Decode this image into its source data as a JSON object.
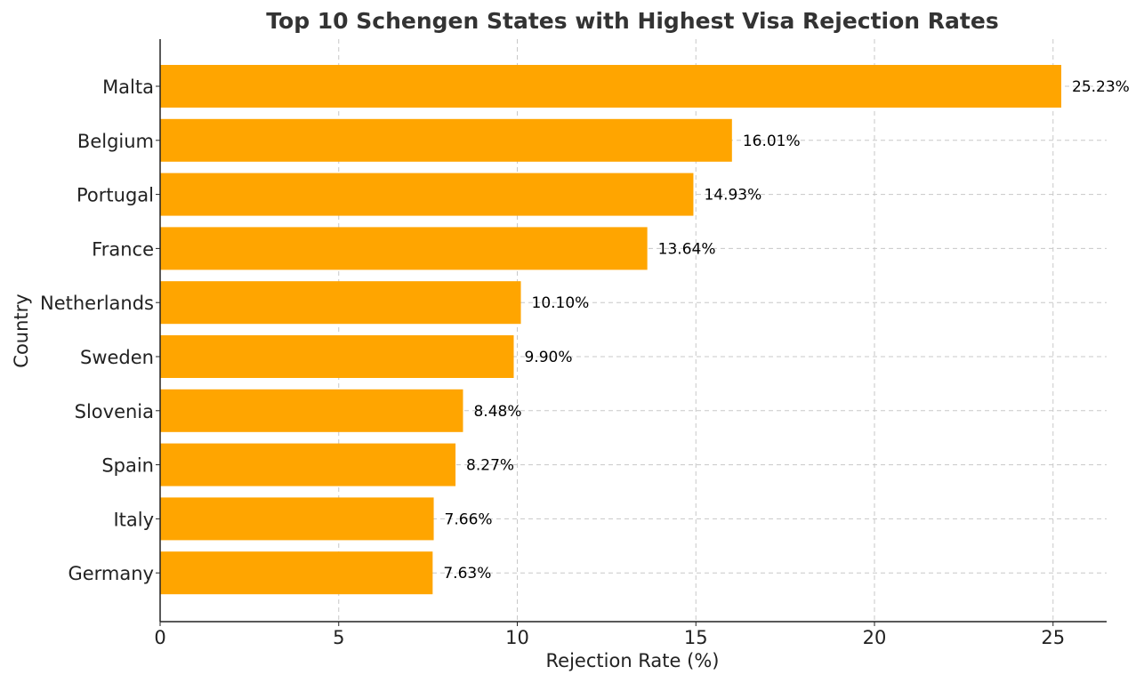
{
  "chart_data": {
    "type": "bar",
    "orientation": "horizontal",
    "title": "Top 10 Schengen States with Highest Visa Rejection Rates",
    "xlabel": "Rejection Rate (%)",
    "ylabel": "Country",
    "categories": [
      "Malta",
      "Belgium",
      "Portugal",
      "France",
      "Netherlands",
      "Sweden",
      "Slovenia",
      "Spain",
      "Italy",
      "Germany"
    ],
    "values": [
      25.23,
      16.01,
      14.93,
      13.64,
      10.1,
      9.9,
      8.48,
      8.27,
      7.66,
      7.63
    ],
    "data_labels": [
      "25.23%",
      "16.01%",
      "14.93%",
      "13.64%",
      "10.10%",
      "9.90%",
      "8.48%",
      "8.27%",
      "7.66%",
      "7.63%"
    ],
    "xlim": [
      0,
      26.5
    ],
    "xticks": [
      0,
      5,
      10,
      15,
      20,
      25
    ],
    "xtick_labels": [
      "0",
      "5",
      "10",
      "15",
      "20",
      "25"
    ],
    "grid": true,
    "grid_style": "dashed",
    "bar_color": "#FFA500"
  }
}
